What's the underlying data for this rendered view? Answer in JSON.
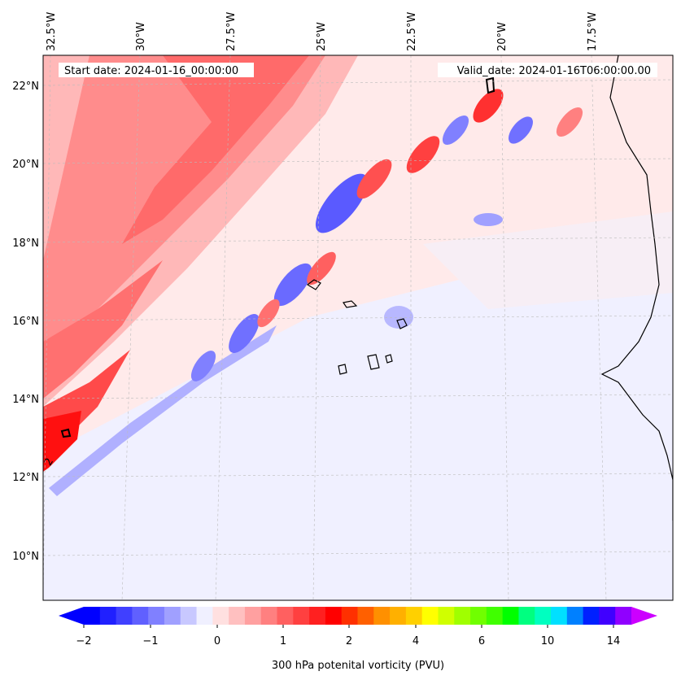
{
  "header": {
    "start_date": "Start date: 2024-01-16_00:00:00",
    "valid_date": "Valid_date: 2024-01-16T06:00:00.00"
  },
  "map": {
    "lon_labels": [
      "32.5°W",
      "30°W",
      "27.5°W",
      "25°W",
      "22.5°W",
      "20°W",
      "17.5°W"
    ],
    "lat_labels": [
      "22°N",
      "20°N",
      "18°N",
      "16°N",
      "14°N",
      "12°N",
      "10°N"
    ],
    "contour_label": "2"
  },
  "colorbar": {
    "label": "300 hPa potenital vorticity (PVU)",
    "ticks": [
      "−2",
      "−1",
      "0",
      "1",
      "2",
      "4",
      "6",
      "10",
      "14"
    ],
    "colors": [
      "#0000ff",
      "#2020ff",
      "#4040ff",
      "#6060ff",
      "#8080ff",
      "#a0a0ff",
      "#c8c8ff",
      "#f0f0ff",
      "#ffe0e0",
      "#ffc0c0",
      "#ffa0a0",
      "#ff8080",
      "#ff6060",
      "#ff4040",
      "#ff2020",
      "#ff0000",
      "#ff3000",
      "#ff6000",
      "#ff9000",
      "#ffb000",
      "#ffd000",
      "#ffff00",
      "#d0ff00",
      "#a0ff00",
      "#70ff00",
      "#40ff00",
      "#00ff00",
      "#00ff80",
      "#00ffc0",
      "#00e0ff",
      "#0080ff",
      "#0020ff",
      "#4000ff",
      "#9000ff"
    ],
    "extend_low_color": "#0000ff",
    "extend_high_color": "#cc00ff"
  }
}
